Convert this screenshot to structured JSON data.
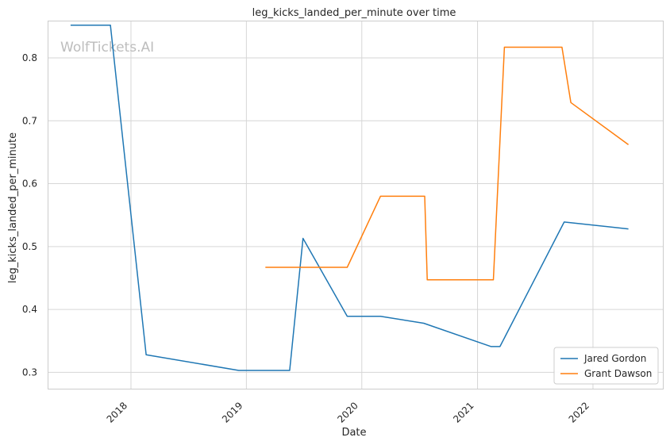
{
  "chart_data": {
    "type": "line",
    "title": "leg_kicks_landed_per_minute over time",
    "xlabel": "Date",
    "ylabel": "leg_kicks_landed_per_minute",
    "watermark": "WolfTickets.AI",
    "x_ticks": [
      "2018",
      "2019",
      "2020",
      "2021",
      "2022"
    ],
    "y_ticks": [
      0.3,
      0.4,
      0.5,
      0.6,
      0.7,
      0.8
    ],
    "xlim": [
      "2017-04-15",
      "2022-08-10"
    ],
    "ylim": [
      0.274,
      0.858
    ],
    "grid": true,
    "legend_position": "bottom-right",
    "series": [
      {
        "name": "Jared Gordon",
        "color": "#1f77b4",
        "points": [
          {
            "x": "2017-06-24",
            "y": 0.852
          },
          {
            "x": "2017-10-28",
            "y": 0.852
          },
          {
            "x": "2018-02-18",
            "y": 0.328
          },
          {
            "x": "2018-12-08",
            "y": 0.303
          },
          {
            "x": "2019-05-18",
            "y": 0.303
          },
          {
            "x": "2019-06-29",
            "y": 0.513
          },
          {
            "x": "2019-11-16",
            "y": 0.389
          },
          {
            "x": "2020-02-29",
            "y": 0.389
          },
          {
            "x": "2020-07-15",
            "y": 0.378
          },
          {
            "x": "2021-02-13",
            "y": 0.341
          },
          {
            "x": "2021-03-13",
            "y": 0.341
          },
          {
            "x": "2021-10-02",
            "y": 0.539
          },
          {
            "x": "2022-04-23",
            "y": 0.528
          }
        ]
      },
      {
        "name": "Grant Dawson",
        "color": "#ff7f0e",
        "points": [
          {
            "x": "2019-03-02",
            "y": 0.467
          },
          {
            "x": "2019-11-16",
            "y": 0.467
          },
          {
            "x": "2020-02-29",
            "y": 0.58
          },
          {
            "x": "2020-07-18",
            "y": 0.58
          },
          {
            "x": "2020-07-26",
            "y": 0.447
          },
          {
            "x": "2021-02-20",
            "y": 0.447
          },
          {
            "x": "2021-03-27",
            "y": 0.817
          },
          {
            "x": "2021-09-25",
            "y": 0.817
          },
          {
            "x": "2021-10-23",
            "y": 0.729
          },
          {
            "x": "2022-04-23",
            "y": 0.662
          }
        ]
      }
    ]
  }
}
